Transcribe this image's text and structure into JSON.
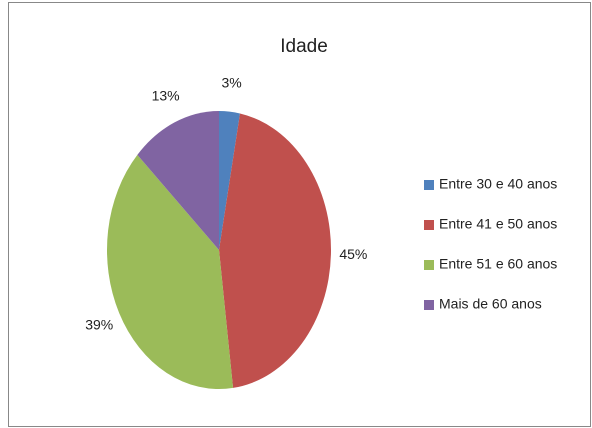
{
  "chart_data": {
    "type": "pie",
    "title": "Idade",
    "categories": [
      "Entre 30 e 40 anos",
      "Entre 41 e 50 anos",
      "Entre 51 e 60 anos",
      "Mais de 60 anos"
    ],
    "values": [
      3,
      45,
      39,
      13
    ],
    "value_labels": [
      "3%",
      "45%",
      "39%",
      "13%"
    ],
    "colors": [
      "#4f81bd",
      "#c0504d",
      "#9bbb59",
      "#8064a2"
    ],
    "legend": "right"
  }
}
